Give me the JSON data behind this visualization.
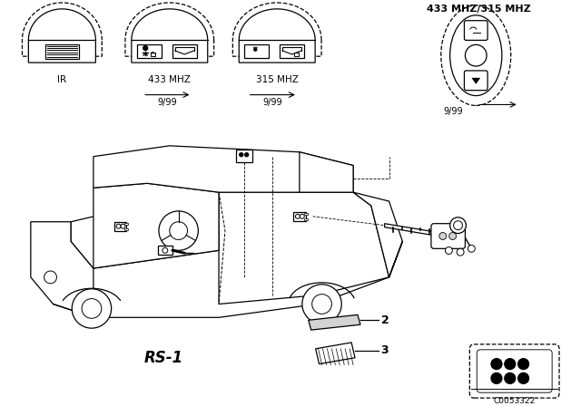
{
  "bg_color": "#ffffff",
  "fg_color": "#000000",
  "labels": {
    "ir": "IR",
    "433mhz": "433 MHZ",
    "315mhz": "315 MHZ",
    "433_315": "433 MHZ/315 MHZ",
    "date1": "9/99",
    "date2": "9/99",
    "date3": "9/99",
    "rs1": "RS-1",
    "num2": "2",
    "num3": "3",
    "code": "C0053322"
  },
  "figsize": [
    6.4,
    4.48
  ],
  "dpi": 100
}
